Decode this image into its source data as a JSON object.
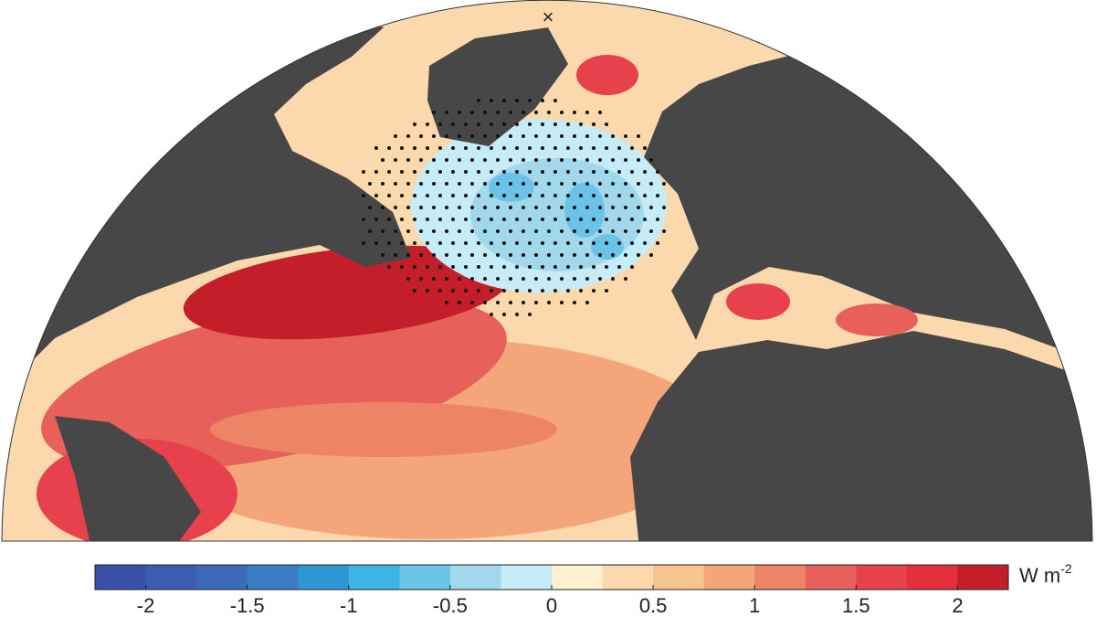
{
  "colorbar": {
    "boundaries": [
      -2.25,
      -2,
      -1.75,
      -1.5,
      -1.25,
      -1,
      -0.75,
      -0.5,
      -0.25,
      0,
      0.25,
      0.5,
      0.75,
      1,
      1.25,
      1.5,
      1.75,
      2,
      2.25
    ],
    "colors": [
      "#3a4fa6",
      "#3b5cb0",
      "#3c6ab9",
      "#3a7dc4",
      "#2f96d4",
      "#3bb5e6",
      "#6cc3e8",
      "#a2d8ec",
      "#c6ecf7",
      "#fdf0d0",
      "#fbd9ac",
      "#f8c48e",
      "#f4a67a",
      "#ee8466",
      "#e8605a",
      "#e6414c",
      "#e42e3a",
      "#c41e2a"
    ],
    "ticks": [
      -2,
      -1.5,
      -1,
      -0.5,
      0,
      0.5,
      1,
      1.5,
      2
    ],
    "label": "W m",
    "label_exponent": "-2"
  }
}
